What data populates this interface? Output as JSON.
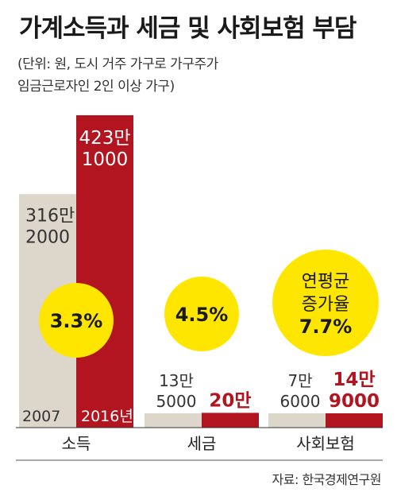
{
  "title": "가계소득과 세금 및 사회보험 부담",
  "subtitle_line1": "(단위: 원, 도시 거주 가구로 가구주가",
  "subtitle_line2": "임금근로자인 2인 이상 가구)",
  "source": "자료: 한국경제연구원",
  "colors": {
    "series_2007": "#dcd6cb",
    "series_2016": "#b2151f",
    "growth_circle": "#ffe600",
    "axis": "#333333"
  },
  "chart_data": {
    "type": "bar",
    "categories": [
      "소득",
      "세금",
      "사회보험"
    ],
    "series": [
      {
        "name": "2007",
        "values": [
          3162000,
          135000,
          76000
        ],
        "labels": [
          [
            "316만",
            "2000"
          ],
          [
            "13만",
            "5000"
          ],
          [
            "7만",
            "6000"
          ]
        ]
      },
      {
        "name": "2016년",
        "values": [
          4231000,
          200000,
          149000
        ],
        "labels": [
          [
            "423만",
            "1000"
          ],
          [
            "20만"
          ],
          [
            "14만",
            "9000"
          ]
        ]
      }
    ],
    "growth_rates": [
      [
        "3.3%"
      ],
      [
        "4.5%"
      ],
      [
        "연평균",
        "증가율",
        "7.7%"
      ]
    ],
    "bar_inside_labels": {
      "2007": "2007",
      "2016": "2016년"
    },
    "ylim": [
      0,
      4231000
    ]
  }
}
